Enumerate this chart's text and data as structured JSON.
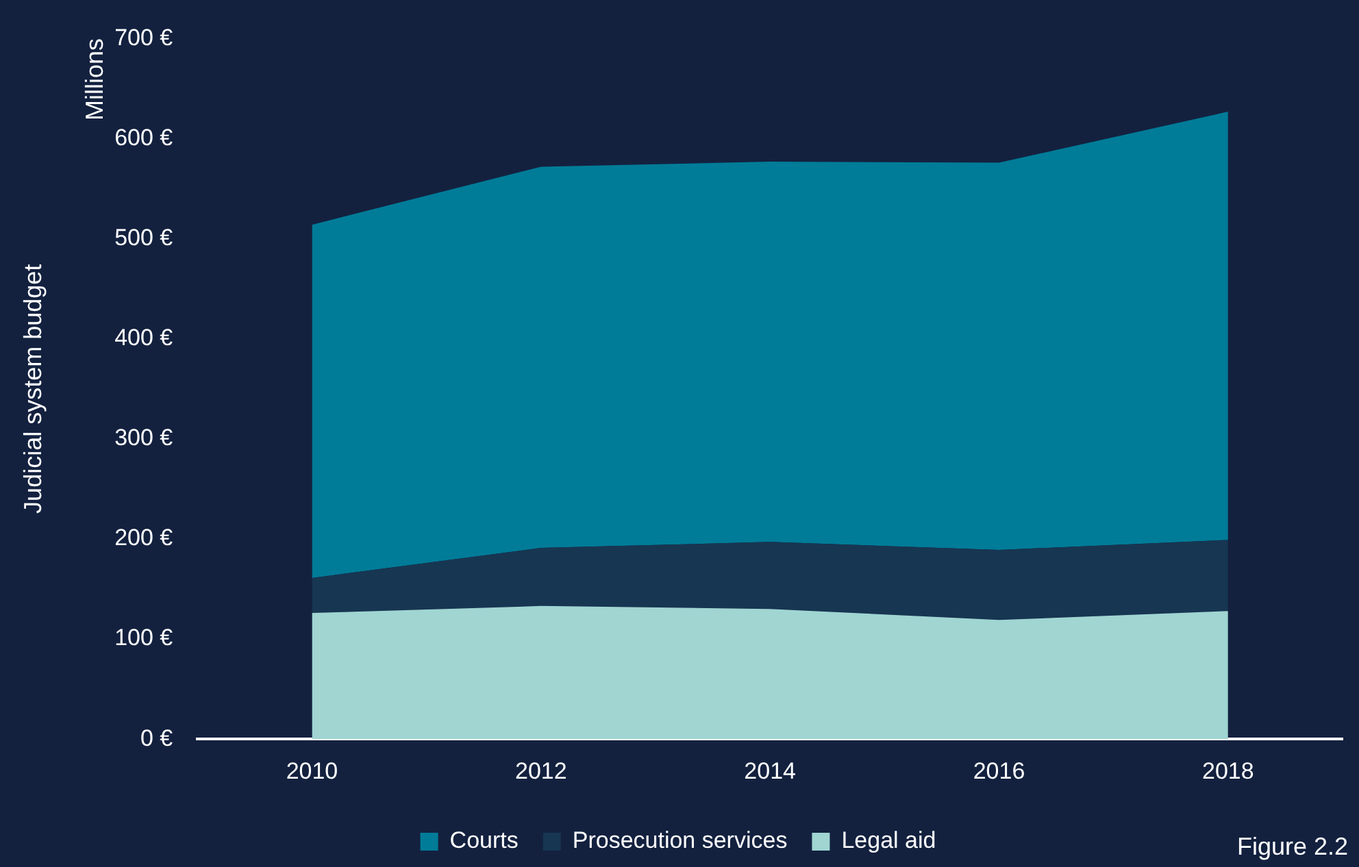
{
  "chart_data": {
    "type": "area",
    "stacked": true,
    "ylabel": "Judicial system budget",
    "categories": [
      "2010",
      "2012",
      "2014",
      "2016",
      "2018"
    ],
    "series": [
      {
        "name": "Legal aid",
        "color": "#a0d5d2",
        "values": [
          126,
          133,
          130,
          119,
          128
        ]
      },
      {
        "name": "Prosecution services",
        "color": "#173652",
        "values": [
          35,
          58,
          67,
          70,
          71
        ]
      },
      {
        "name": "Courts",
        "color": "#007c98",
        "values": [
          353,
          381,
          380,
          387,
          428
        ]
      }
    ],
    "ylim": [
      0,
      700
    ],
    "yticks": [
      {
        "value": 0,
        "label": "0 €"
      },
      {
        "value": 100,
        "label": "100 €"
      },
      {
        "value": 200,
        "label": "200 €"
      },
      {
        "value": 300,
        "label": "300 €"
      },
      {
        "value": 400,
        "label": "400 €"
      },
      {
        "value": 500,
        "label": "500 €"
      },
      {
        "value": 600,
        "label": "600 €"
      },
      {
        "value": 700,
        "label": "700 €"
      }
    ],
    "grid": false,
    "legend": "bottom",
    "annotations": [
      "Millions",
      "Figure 2.2"
    ]
  }
}
